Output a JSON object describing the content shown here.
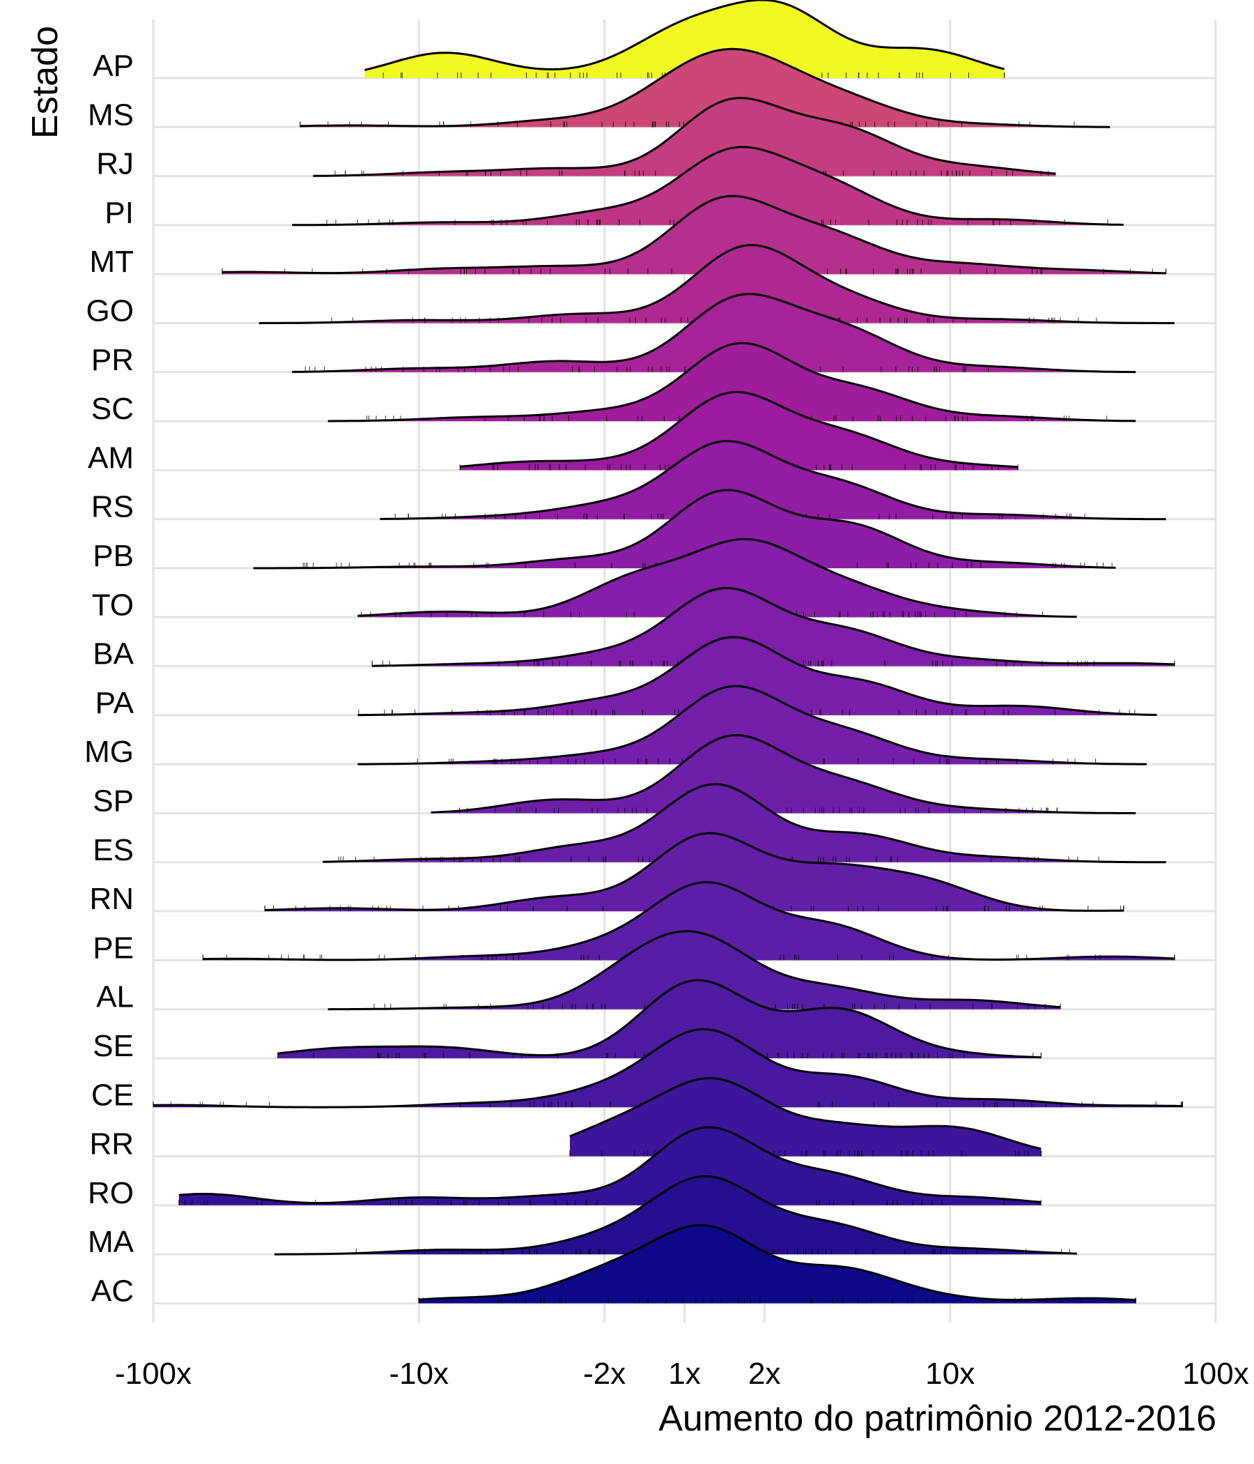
{
  "chart_data": {
    "type": "ridgeline",
    "title": "",
    "xlabel": "Aumento do patrimônio 2012-2016",
    "ylabel": "Estado",
    "x_scale": "symmetric-log",
    "x_ticks": [
      {
        "value": -100,
        "label": "-100x"
      },
      {
        "value": -10,
        "label": "-10x"
      },
      {
        "value": -2,
        "label": "-2x"
      },
      {
        "value": 1,
        "label": "1x"
      },
      {
        "value": 2,
        "label": "2x"
      },
      {
        "value": 10,
        "label": "10x"
      },
      {
        "value": 100,
        "label": "100x"
      }
    ],
    "xlim": [
      -100,
      100
    ],
    "grid": true,
    "legend": "none",
    "rug": true,
    "categories": [
      "AP",
      "MS",
      "RJ",
      "PI",
      "MT",
      "GO",
      "PR",
      "SC",
      "AM",
      "RS",
      "PB",
      "TO",
      "BA",
      "PA",
      "MG",
      "SP",
      "ES",
      "RN",
      "PE",
      "AL",
      "SE",
      "CE",
      "RR",
      "RO",
      "MA",
      "AC"
    ],
    "colors": [
      "#f0f921",
      "#cc4778",
      "#c33e81",
      "#bc3587",
      "#b52f8c",
      "#ae2892",
      "#a62298",
      "#9f1d9a",
      "#9a1b9e",
      "#921ca3",
      "#8b1ea6",
      "#851ea8",
      "#7f1ea9",
      "#791fa9",
      "#741fa9",
      "#6e1fa8",
      "#681fa7",
      "#621fa6",
      "#5c1ea5",
      "#561ea4",
      "#4e1aa0",
      "#46189e",
      "#3d159b",
      "#321398",
      "#270e8f",
      "#0d0887"
    ],
    "series": [
      {
        "name": "AP",
        "range": [
          -16,
          16
        ],
        "peaks": [
          [
            -8,
            0.38
          ],
          [
            -2.5,
            0.06
          ],
          [
            1,
            0.68
          ],
          [
            2.3,
            1.0
          ],
          [
            8,
            0.42
          ]
        ]
      },
      {
        "name": "MS",
        "range": [
          -28,
          40
        ],
        "peaks": [
          [
            -18,
            0.03
          ],
          [
            -3,
            0.12
          ],
          [
            1,
            0.72
          ],
          [
            1.8,
            0.95
          ],
          [
            4,
            0.45
          ],
          [
            12,
            0.05
          ]
        ]
      },
      {
        "name": "RJ",
        "range": [
          -25,
          25
        ],
        "peaks": [
          [
            -8,
            0.05
          ],
          [
            -3,
            0.1
          ],
          [
            1.5,
            1.0
          ],
          [
            4,
            0.6
          ],
          [
            12,
            0.12
          ]
        ]
      },
      {
        "name": "PI",
        "range": [
          -30,
          45
        ],
        "peaks": [
          [
            -8,
            0.04
          ],
          [
            -2,
            0.18
          ],
          [
            1.5,
            1.0
          ],
          [
            3.5,
            0.52
          ],
          [
            15,
            0.08
          ]
        ]
      },
      {
        "name": "MT",
        "range": [
          -55,
          65
        ],
        "peaks": [
          [
            -45,
            0.03
          ],
          [
            -8,
            0.07
          ],
          [
            -3,
            0.1
          ],
          [
            1.4,
            1.0
          ],
          [
            3.5,
            0.5
          ],
          [
            11,
            0.13
          ],
          [
            30,
            0.05
          ]
        ]
      },
      {
        "name": "GO",
        "range": [
          -40,
          70
        ],
        "peaks": [
          [
            -10,
            0.04
          ],
          [
            -2.5,
            0.12
          ],
          [
            1.7,
            1.0
          ],
          [
            4,
            0.3
          ],
          [
            15,
            0.05
          ]
        ]
      },
      {
        "name": "PR",
        "range": [
          -30,
          50
        ],
        "peaks": [
          [
            -10,
            0.05
          ],
          [
            -3,
            0.15
          ],
          [
            1.6,
            1.0
          ],
          [
            4,
            0.55
          ],
          [
            14,
            0.07
          ]
        ]
      },
      {
        "name": "SC",
        "range": [
          -22,
          50
        ],
        "peaks": [
          [
            -6,
            0.05
          ],
          [
            -2,
            0.12
          ],
          [
            1.6,
            1.0
          ],
          [
            4.5,
            0.4
          ],
          [
            15,
            0.06
          ]
        ]
      },
      {
        "name": "AM",
        "range": [
          -7,
          18
        ],
        "peaks": [
          [
            -4,
            0.1
          ],
          [
            -1.8,
            0.07
          ],
          [
            1.5,
            1.0
          ],
          [
            4,
            0.45
          ],
          [
            12,
            0.06
          ]
        ]
      },
      {
        "name": "RS",
        "range": [
          -14,
          65
        ],
        "peaks": [
          [
            -5,
            0.03
          ],
          [
            -2,
            0.17
          ],
          [
            1.4,
            1.0
          ],
          [
            3.8,
            0.45
          ],
          [
            15,
            0.06
          ]
        ]
      },
      {
        "name": "PB",
        "range": [
          -42,
          42
        ],
        "peaks": [
          [
            -10,
            0.02
          ],
          [
            -2.5,
            0.12
          ],
          [
            1.4,
            1.0
          ],
          [
            4.2,
            0.55
          ],
          [
            15,
            0.07
          ]
        ]
      },
      {
        "name": "TO",
        "range": [
          -17,
          30
        ],
        "peaks": [
          [
            -8,
            0.08
          ],
          [
            -1.5,
            0.55
          ],
          [
            1.7,
            1.0
          ],
          [
            4,
            0.4
          ],
          [
            10,
            0.08
          ]
        ]
      },
      {
        "name": "BA",
        "range": [
          -15,
          70
        ],
        "peaks": [
          [
            -6,
            0.03
          ],
          [
            -2,
            0.15
          ],
          [
            1.4,
            1.0
          ],
          [
            4,
            0.45
          ],
          [
            12,
            0.08
          ],
          [
            45,
            0.04
          ]
        ]
      },
      {
        "name": "PA",
        "range": [
          -17,
          60
        ],
        "peaks": [
          [
            -6,
            0.03
          ],
          [
            -2,
            0.18
          ],
          [
            1.5,
            1.0
          ],
          [
            4.5,
            0.42
          ],
          [
            18,
            0.12
          ]
        ]
      },
      {
        "name": "MG",
        "range": [
          -17,
          55
        ],
        "peaks": [
          [
            -5,
            0.03
          ],
          [
            -2,
            0.12
          ],
          [
            1.5,
            1.0
          ],
          [
            4,
            0.4
          ],
          [
            14,
            0.06
          ]
        ]
      },
      {
        "name": "SP",
        "range": [
          -9,
          50
        ],
        "peaks": [
          [
            -3,
            0.18
          ],
          [
            1.5,
            1.0
          ],
          [
            4,
            0.38
          ],
          [
            12,
            0.05
          ]
        ]
      },
      {
        "name": "ES",
        "range": [
          -23,
          65
        ],
        "peaks": [
          [
            -9,
            0.04
          ],
          [
            -2.5,
            0.2
          ],
          [
            1.3,
            1.0
          ],
          [
            4.5,
            0.35
          ],
          [
            14,
            0.06
          ]
        ]
      },
      {
        "name": "RN",
        "range": [
          -38,
          45
        ],
        "peaks": [
          [
            -20,
            0.04
          ],
          [
            -3,
            0.18
          ],
          [
            1.2,
            1.0
          ],
          [
            3.5,
            0.5
          ],
          [
            8,
            0.36
          ],
          [
            80,
            0.02
          ]
        ]
      },
      {
        "name": "PE",
        "range": [
          -65,
          70
        ],
        "peaks": [
          [
            -50,
            0.02
          ],
          [
            -6,
            0.05
          ],
          [
            -2,
            0.18
          ],
          [
            1.2,
            1.0
          ],
          [
            3.5,
            0.45
          ],
          [
            40,
            0.05
          ]
        ]
      },
      {
        "name": "AL",
        "range": [
          -22,
          26
        ],
        "peaks": [
          [
            -6,
            0.03
          ],
          [
            -1.5,
            0.6
          ],
          [
            1.2,
            1.0
          ],
          [
            3.5,
            0.35
          ],
          [
            12,
            0.15
          ]
        ]
      },
      {
        "name": "SE",
        "range": [
          -34,
          22
        ],
        "peaks": [
          [
            -20,
            0.12
          ],
          [
            -8,
            0.13
          ],
          [
            1.1,
            1.0
          ],
          [
            3.8,
            0.62
          ],
          [
            10,
            0.05
          ]
        ]
      },
      {
        "name": "CE",
        "range": [
          -100,
          75
        ],
        "peaks": [
          [
            -85,
            0.03
          ],
          [
            -6,
            0.05
          ],
          [
            -2,
            0.2
          ],
          [
            1.2,
            1.0
          ],
          [
            4,
            0.4
          ],
          [
            15,
            0.1
          ],
          [
            55,
            0.02
          ]
        ]
      },
      {
        "name": "RR",
        "range": [
          -2.7,
          22
        ],
        "peaks": [
          [
            -1.8,
            0.38
          ],
          [
            1.3,
            1.0
          ],
          [
            3.8,
            0.38
          ],
          [
            10.5,
            0.38
          ]
        ]
      },
      {
        "name": "RO",
        "range": [
          -80,
          22
        ],
        "peaks": [
          [
            -65,
            0.15
          ],
          [
            -10,
            0.1
          ],
          [
            -3,
            0.12
          ],
          [
            1.2,
            1.0
          ],
          [
            3.5,
            0.38
          ],
          [
            12,
            0.1
          ]
        ]
      },
      {
        "name": "MA",
        "range": [
          -35,
          30
        ],
        "peaks": [
          [
            -8,
            0.06
          ],
          [
            -2,
            0.2
          ],
          [
            1.2,
            1.0
          ],
          [
            3.5,
            0.38
          ],
          [
            12,
            0.07
          ]
        ]
      },
      {
        "name": "AC",
        "range": [
          -10,
          50
        ],
        "peaks": [
          [
            -7,
            0.07
          ],
          [
            -2,
            0.38
          ],
          [
            1.2,
            1.0
          ],
          [
            3.8,
            0.45
          ],
          [
            8,
            0.08
          ],
          [
            33,
            0.07
          ]
        ]
      }
    ]
  }
}
